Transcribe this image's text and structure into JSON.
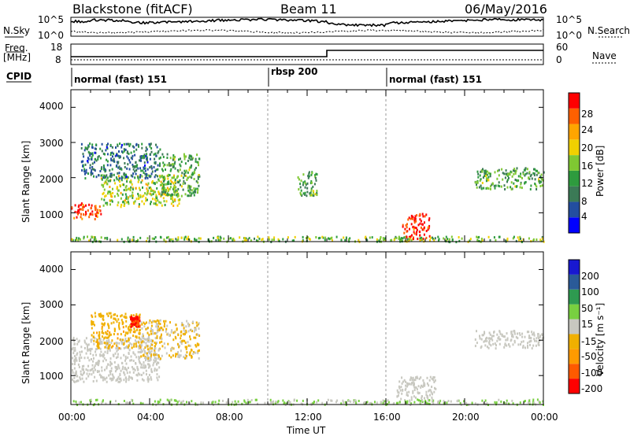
{
  "header": {
    "station": "Blackstone (fitACF)",
    "beam": "Beam 11",
    "date": "06/May/2016"
  },
  "labels": {
    "nsky": "N.Sky",
    "nsearch": "N.Search",
    "freq": "Freq.",
    "freq_unit": "[MHz]",
    "nave": "Nave",
    "cpid": "CPID",
    "ylabel": "Slant Range [km]",
    "xlabel": "Time UT",
    "power_label": "Power [dB]",
    "velocity_label": "Velocity [m s⁻¹]"
  },
  "noise_axis": {
    "left": [
      "10^5",
      "10^0"
    ],
    "right": [
      "10^5",
      "10^0"
    ]
  },
  "freq_axis": {
    "left": [
      "18",
      "8"
    ],
    "right": [
      "60",
      "0"
    ]
  },
  "cpid_segments": [
    {
      "label": "normal (fast) 151",
      "start": 0,
      "end": 10
    },
    {
      "label": "rbsp 200",
      "start": 10,
      "end": 16
    },
    {
      "label": "normal (fast) 151",
      "start": 16,
      "end": 24
    }
  ],
  "colors": {
    "power": [
      "#0000ff",
      "#234ea0",
      "#3b7a56",
      "#2e9b3e",
      "#7fc832",
      "#f0d000",
      "#ffa500",
      "#ff6000",
      "#ff0000"
    ],
    "velocity": [
      "#ff0000",
      "#ff5a00",
      "#ff9a00",
      "#f0b000",
      "#c8c8c0",
      "#78d040",
      "#2e9a50",
      "#2a5a98",
      "#1818d0"
    ],
    "ground_scatter": "#c8c8c0"
  },
  "chart_data": [
    {
      "type": "heatmap",
      "panel": "power",
      "xlabel": "Time UT",
      "ylabel": "Slant Range [km]",
      "xlim": [
        0,
        24
      ],
      "ylim": [
        180,
        4500
      ],
      "xtick_labels": [
        "00:00",
        "04:00",
        "08:00",
        "12:00",
        "16:00",
        "20:00",
        "00:00"
      ],
      "ytick_labels": [
        "1000",
        "2000",
        "3000",
        "4000"
      ],
      "colorbar": {
        "label": "Power [dB]",
        "ticks": [
          "4",
          "8",
          "12",
          "16",
          "20",
          "24",
          "28"
        ],
        "range": [
          0,
          30
        ]
      },
      "regions": [
        {
          "t": [
            0,
            1.5
          ],
          "r": [
            850,
            1300
          ],
          "power": 26
        },
        {
          "t": [
            1.5,
            5.5
          ],
          "r": [
            1200,
            2100
          ],
          "power": 16
        },
        {
          "t": [
            0.5,
            4.5
          ],
          "r": [
            2000,
            3000
          ],
          "power": 8
        },
        {
          "t": [
            4.5,
            6.5
          ],
          "r": [
            1500,
            2700
          ],
          "power": 12
        },
        {
          "t": [
            11.5,
            12.5
          ],
          "r": [
            1500,
            2200
          ],
          "power": 12
        },
        {
          "t": [
            16.8,
            18.2
          ],
          "r": [
            250,
            1000
          ],
          "power": 28
        },
        {
          "t": [
            20.5,
            24
          ],
          "r": [
            1700,
            2300
          ],
          "power": 12
        },
        {
          "t": [
            0,
            24
          ],
          "r": [
            200,
            350
          ],
          "power": 14
        }
      ]
    },
    {
      "type": "heatmap",
      "panel": "velocity",
      "xlabel": "Time UT",
      "ylabel": "Slant Range [km]",
      "xlim": [
        0,
        24
      ],
      "ylim": [
        180,
        4500
      ],
      "xtick_labels": [
        "00:00",
        "04:00",
        "08:00",
        "12:00",
        "16:00",
        "20:00",
        "00:00"
      ],
      "ytick_labels": [
        "1000",
        "2000",
        "3000",
        "4000"
      ],
      "colorbar": {
        "label": "Velocity [m s⁻¹]",
        "ticks": [
          "-200",
          "-100",
          "-50",
          "-15",
          "15",
          "50",
          "100",
          "200"
        ],
        "range": [
          -250,
          250
        ]
      },
      "regions": [
        {
          "t": [
            0,
            4.5
          ],
          "r": [
            850,
            2100
          ],
          "velocity": 0,
          "ground_scatter": true
        },
        {
          "t": [
            1,
            3.5
          ],
          "r": [
            1800,
            2800
          ],
          "velocity": -60
        },
        {
          "t": [
            3.5,
            6.5
          ],
          "r": [
            1500,
            2600
          ],
          "velocity": -30
        },
        {
          "t": [
            3,
            3.5
          ],
          "r": [
            2400,
            2700
          ],
          "velocity": -200
        },
        {
          "t": [
            16.5,
            18.5
          ],
          "r": [
            300,
            1000
          ],
          "velocity": 0,
          "ground_scatter": true
        },
        {
          "t": [
            20.5,
            24
          ],
          "r": [
            1800,
            2300
          ],
          "velocity": 0,
          "ground_scatter": true
        },
        {
          "t": [
            0,
            24
          ],
          "r": [
            200,
            350
          ],
          "velocity": 30
        }
      ]
    }
  ]
}
